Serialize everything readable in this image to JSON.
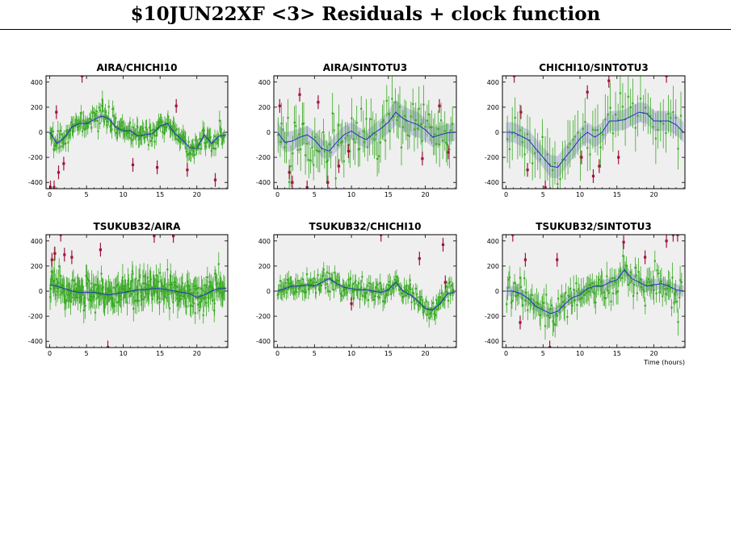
{
  "title": "$10JUN22XF <3> Residuals + clock function",
  "colors": {
    "panel_bg": "#efefef",
    "good_points": "#3aaa25",
    "flagged_points": "#a0153a",
    "clock_line": "#2233bb",
    "clock_band": "#c5c9dc"
  },
  "chart_data": [
    {
      "type": "scatter",
      "title": "AIRA/CHICHI10",
      "xlim": [
        -0.5,
        24.2
      ],
      "ylim": [
        -450,
        450
      ],
      "xticks": [
        0,
        5,
        10,
        15,
        20
      ],
      "yticks": [
        -400,
        -200,
        0,
        200,
        400
      ],
      "xlabel": "",
      "clock": {
        "x": [
          0,
          1,
          2,
          3,
          4,
          5,
          6,
          7,
          8,
          9,
          10,
          11,
          12,
          13,
          14,
          15,
          16,
          17,
          18,
          19,
          20,
          21,
          22,
          23,
          24
        ],
        "y": [
          0,
          -90,
          -40,
          40,
          70,
          70,
          100,
          130,
          110,
          40,
          10,
          10,
          -30,
          -20,
          -10,
          50,
          70,
          -10,
          -60,
          -120,
          -130,
          -20,
          -90,
          -30,
          -20
        ],
        "band": [
          20,
          20,
          20,
          20,
          20,
          20,
          20,
          20,
          20,
          20,
          20,
          20,
          20,
          20,
          20,
          20,
          20,
          20,
          20,
          20,
          20,
          20,
          20,
          20,
          20
        ]
      },
      "points": {
        "n": 240,
        "scatter": 40,
        "err": [
          40,
          80
        ]
      },
      "flagged": [
        [
          0.1,
          -440
        ],
        [
          0.6,
          -440
        ],
        [
          0.9,
          160
        ],
        [
          1.2,
          -320
        ],
        [
          1.9,
          -250
        ],
        [
          4.4,
          450
        ],
        [
          11.3,
          -260
        ],
        [
          14.6,
          -280
        ],
        [
          17.2,
          210
        ],
        [
          18.7,
          -300
        ],
        [
          22.5,
          -380
        ]
      ]
    },
    {
      "type": "scatter",
      "title": "AIRA/SINTOTU3",
      "xlim": [
        -0.5,
        24.2
      ],
      "ylim": [
        -450,
        450
      ],
      "xticks": [
        0,
        5,
        10,
        15,
        20
      ],
      "yticks": [
        -400,
        -200,
        0,
        200,
        400
      ],
      "xlabel": "",
      "clock": {
        "x": [
          0,
          1,
          2,
          3,
          4,
          5,
          6,
          7,
          8,
          9,
          10,
          11,
          12,
          13,
          14,
          15,
          16,
          17,
          18,
          19,
          20,
          21,
          22,
          23,
          24
        ],
        "y": [
          0,
          -80,
          -70,
          -40,
          -20,
          -60,
          -130,
          -150,
          -80,
          -20,
          10,
          -30,
          -60,
          -10,
          30,
          80,
          160,
          110,
          80,
          60,
          20,
          -40,
          -20,
          -5,
          0
        ],
        "band": [
          90,
          80,
          80,
          70,
          70,
          70,
          70,
          70,
          70,
          70,
          70,
          70,
          70,
          70,
          80,
          90,
          100,
          100,
          100,
          100,
          90,
          80,
          70,
          70,
          70
        ]
      },
      "points": {
        "n": 110,
        "scatter": 110,
        "err": [
          100,
          180
        ]
      },
      "flagged": [
        [
          0.3,
          210
        ],
        [
          1.6,
          -320
        ],
        [
          2.0,
          -400
        ],
        [
          3.0,
          300
        ],
        [
          4.0,
          -440
        ],
        [
          5.5,
          240
        ],
        [
          6.8,
          -400
        ],
        [
          8.3,
          -270
        ],
        [
          9.6,
          -150
        ],
        [
          19.6,
          -210
        ],
        [
          21.9,
          210
        ],
        [
          23.1,
          -160
        ]
      ]
    },
    {
      "type": "scatter",
      "title": "CHICHI10/SINTOTU3",
      "xlim": [
        -0.5,
        24.2
      ],
      "ylim": [
        -450,
        450
      ],
      "xticks": [
        0,
        5,
        10,
        15,
        20
      ],
      "yticks": [
        -400,
        -200,
        0,
        200,
        400
      ],
      "xlabel": "",
      "clock": {
        "x": [
          0,
          1,
          2,
          3,
          4,
          5,
          6,
          7,
          8,
          9,
          10,
          11,
          12,
          13,
          14,
          15,
          16,
          17,
          18,
          19,
          20,
          21,
          22,
          23,
          24
        ],
        "y": [
          0,
          0,
          -30,
          -60,
          -130,
          -200,
          -270,
          -280,
          -200,
          -130,
          -50,
          0,
          -40,
          0,
          90,
          90,
          100,
          130,
          160,
          150,
          90,
          90,
          90,
          60,
          0
        ],
        "band": [
          80,
          80,
          80,
          80,
          80,
          80,
          90,
          90,
          90,
          80,
          80,
          80,
          80,
          80,
          80,
          80,
          80,
          80,
          80,
          80,
          80,
          80,
          80,
          80,
          80
        ]
      },
      "points": {
        "n": 70,
        "scatter": 90,
        "err": [
          120,
          220
        ]
      },
      "flagged": [
        [
          1.1,
          450
        ],
        [
          2.0,
          160
        ],
        [
          2.9,
          -300
        ],
        [
          5.3,
          -440
        ],
        [
          10.2,
          -200
        ],
        [
          11.0,
          320
        ],
        [
          11.8,
          -350
        ],
        [
          12.6,
          -270
        ],
        [
          13.9,
          410
        ],
        [
          15.2,
          -200
        ],
        [
          21.7,
          450
        ]
      ]
    },
    {
      "type": "scatter",
      "title": "TSUKUB32/AIRA",
      "xlim": [
        -0.5,
        24.2
      ],
      "ylim": [
        -450,
        450
      ],
      "xticks": [
        0,
        5,
        10,
        15,
        20
      ],
      "yticks": [
        -400,
        -200,
        0,
        200,
        400
      ],
      "xlabel": "",
      "clock": {
        "x": [
          0,
          1,
          2,
          3,
          4,
          5,
          6,
          7,
          8,
          9,
          10,
          11,
          12,
          13,
          14,
          15,
          16,
          17,
          18,
          19,
          20,
          21,
          22,
          23,
          24
        ],
        "y": [
          50,
          40,
          20,
          0,
          -10,
          -10,
          -10,
          -20,
          -30,
          -20,
          -10,
          0,
          10,
          10,
          20,
          20,
          10,
          0,
          -10,
          -20,
          -50,
          -30,
          0,
          20,
          20
        ],
        "band": [
          15,
          15,
          15,
          15,
          15,
          15,
          15,
          15,
          15,
          15,
          15,
          15,
          15,
          15,
          15,
          15,
          15,
          15,
          15,
          15,
          15,
          15,
          15,
          15,
          15
        ]
      },
      "points": {
        "n": 330,
        "scatter": 60,
        "err": [
          60,
          110
        ]
      },
      "flagged": [
        [
          0.3,
          250
        ],
        [
          0.7,
          300
        ],
        [
          1.5,
          450
        ],
        [
          2.0,
          290
        ],
        [
          3.0,
          270
        ],
        [
          6.9,
          330
        ],
        [
          7.9,
          -450
        ],
        [
          14.2,
          440
        ],
        [
          16.8,
          440
        ]
      ]
    },
    {
      "type": "scatter",
      "title": "TSUKUB32/CHICHI10",
      "xlim": [
        -0.5,
        24.2
      ],
      "ylim": [
        -450,
        450
      ],
      "xticks": [
        0,
        5,
        10,
        15,
        20
      ],
      "yticks": [
        -400,
        -200,
        0,
        200,
        400
      ],
      "xlabel": "",
      "clock": {
        "x": [
          0,
          1,
          2,
          3,
          4,
          5,
          6,
          7,
          8,
          9,
          10,
          11,
          12,
          13,
          14,
          15,
          16,
          17,
          18,
          19,
          20,
          21,
          22,
          23,
          24
        ],
        "y": [
          0,
          20,
          40,
          40,
          50,
          40,
          70,
          100,
          60,
          30,
          20,
          10,
          10,
          0,
          -10,
          10,
          70,
          0,
          -30,
          -80,
          -140,
          -150,
          -100,
          -20,
          -10
        ],
        "band": [
          15,
          15,
          15,
          15,
          15,
          15,
          15,
          15,
          15,
          15,
          15,
          15,
          15,
          15,
          15,
          15,
          15,
          15,
          15,
          15,
          15,
          15,
          15,
          15,
          15
        ]
      },
      "points": {
        "n": 230,
        "scatter": 40,
        "err": [
          40,
          80
        ]
      },
      "flagged": [
        [
          10.0,
          -100
        ],
        [
          14.0,
          450
        ],
        [
          19.2,
          260
        ],
        [
          22.4,
          370
        ],
        [
          22.7,
          70
        ]
      ]
    },
    {
      "type": "scatter",
      "title": "TSUKUB32/SINTOTU3",
      "xlim": [
        -0.5,
        24.2
      ],
      "ylim": [
        -450,
        450
      ],
      "xticks": [
        0,
        5,
        10,
        15,
        20
      ],
      "yticks": [
        -400,
        -200,
        0,
        200,
        400
      ],
      "xlabel": "Time (hours)",
      "clock": {
        "x": [
          0,
          1,
          2,
          3,
          4,
          5,
          6,
          7,
          8,
          9,
          10,
          11,
          12,
          13,
          14,
          15,
          16,
          17,
          18,
          19,
          20,
          21,
          22,
          23,
          24
        ],
        "y": [
          0,
          0,
          -20,
          -60,
          -120,
          -150,
          -180,
          -160,
          -100,
          -50,
          -30,
          20,
          40,
          40,
          70,
          90,
          170,
          100,
          70,
          40,
          50,
          60,
          40,
          10,
          0
        ],
        "band": [
          40,
          40,
          40,
          40,
          40,
          40,
          40,
          40,
          40,
          40,
          40,
          40,
          40,
          40,
          40,
          40,
          45,
          45,
          45,
          45,
          45,
          45,
          45,
          45,
          45
        ]
      },
      "points": {
        "n": 160,
        "scatter": 70,
        "err": [
          60,
          120
        ]
      },
      "flagged": [
        [
          0.9,
          450
        ],
        [
          1.9,
          -250
        ],
        [
          2.6,
          250
        ],
        [
          5.9,
          -450
        ],
        [
          6.9,
          250
        ],
        [
          15.9,
          390
        ],
        [
          18.8,
          270
        ],
        [
          21.7,
          400
        ],
        [
          22.6,
          450
        ],
        [
          23.2,
          450
        ]
      ]
    }
  ]
}
